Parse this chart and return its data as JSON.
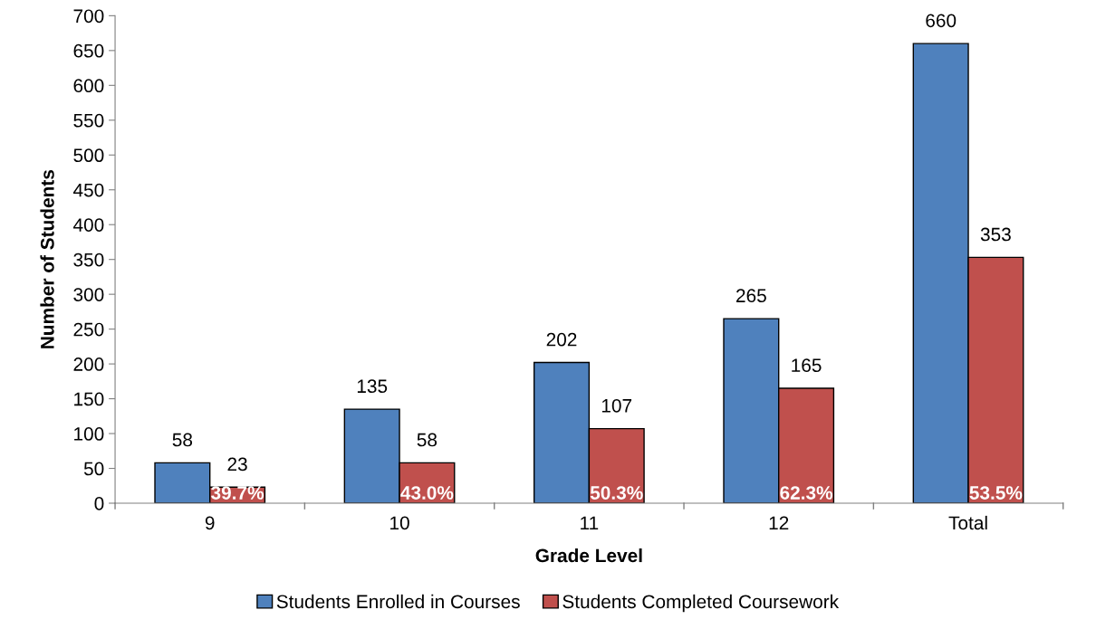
{
  "chart_data": {
    "type": "bar",
    "xlabel": "Grade Level",
    "ylabel": "Number of Students",
    "categories": [
      "9",
      "10",
      "11",
      "12",
      "Total"
    ],
    "series": [
      {
        "name": "Students Enrolled in Courses",
        "color": "#4f81bd",
        "values": [
          58,
          135,
          202,
          265,
          660
        ]
      },
      {
        "name": "Students Completed Coursework",
        "color": "#c0504d",
        "values": [
          23,
          58,
          107,
          165,
          353
        ]
      }
    ],
    "ylim": [
      0,
      700
    ],
    "yticks": [
      0,
      50,
      100,
      150,
      200,
      250,
      300,
      350,
      400,
      450,
      500,
      550,
      600,
      650,
      700
    ],
    "data_labels": true,
    "grid": false,
    "legend": "bottom",
    "annotations": [
      {
        "text": "39.7%",
        "x": "9",
        "y": 0
      },
      {
        "text": "43.0%",
        "x": "10",
        "y": 0
      },
      {
        "text": "50.3%",
        "x": "11",
        "y": 0
      },
      {
        "text": "62.3%",
        "x": "12",
        "y": 0
      },
      {
        "text": "53.5%",
        "x": "Total",
        "y": 0
      }
    ]
  }
}
